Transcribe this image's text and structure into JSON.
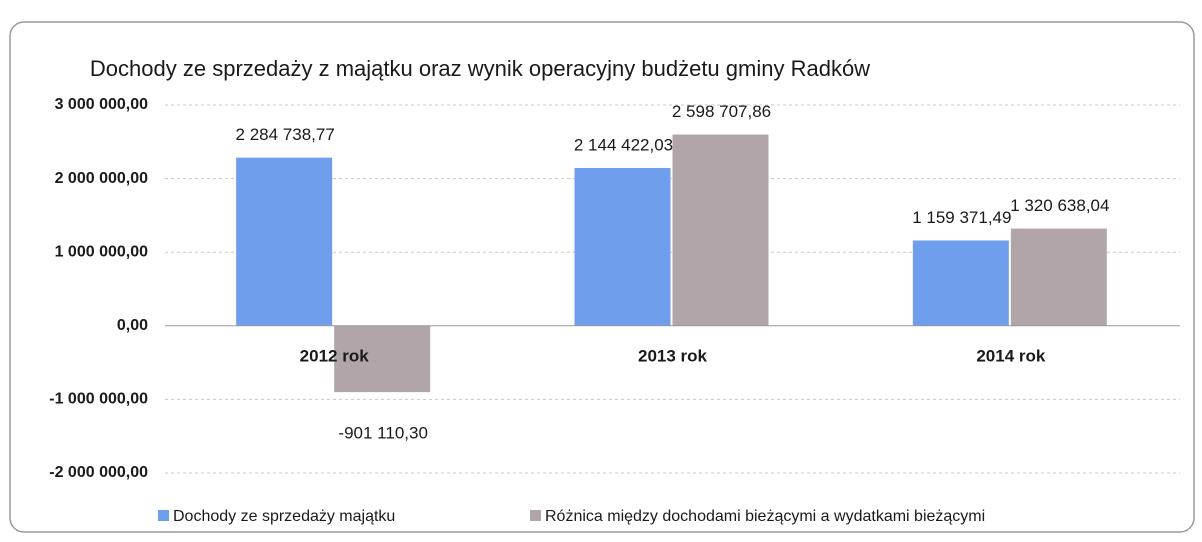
{
  "chart_data": {
    "type": "bar",
    "title": "Dochody ze sprzedaży z majątku oraz wynik operacyjny budżetu gminy Radków",
    "categories": [
      "2012 rok",
      "2013 rok",
      "2014 rok"
    ],
    "series": [
      {
        "name": "Dochody ze sprzedaży majątku",
        "color": "#6f9fec",
        "values": [
          2284738.77,
          2144422.03,
          1159371.49
        ],
        "value_labels": [
          "2 284 738,77",
          "2 144 422,03",
          "1 159 371,49"
        ]
      },
      {
        "name": "Różnica między dochodami bieżącymi a wydatkami bieżącymi",
        "color": "#b0a6a9",
        "values": [
          -901110.3,
          2598707.86,
          1320638.04
        ],
        "value_labels": [
          "-901 110,30",
          "2 598 707,86",
          "1 320 638,04"
        ]
      }
    ],
    "ylim": [
      -2000000,
      3000000
    ],
    "yticks": [
      {
        "value": -2000000,
        "label": "-2 000 000,00"
      },
      {
        "value": -1000000,
        "label": "-1 000 000,00"
      },
      {
        "value": 0,
        "label": "0,00"
      },
      {
        "value": 1000000,
        "label": "1 000 000,00"
      },
      {
        "value": 2000000,
        "label": "2 000 000,00"
      },
      {
        "value": 3000000,
        "label": "3 000 000,00"
      }
    ],
    "grid": true,
    "legend": "bottom"
  }
}
